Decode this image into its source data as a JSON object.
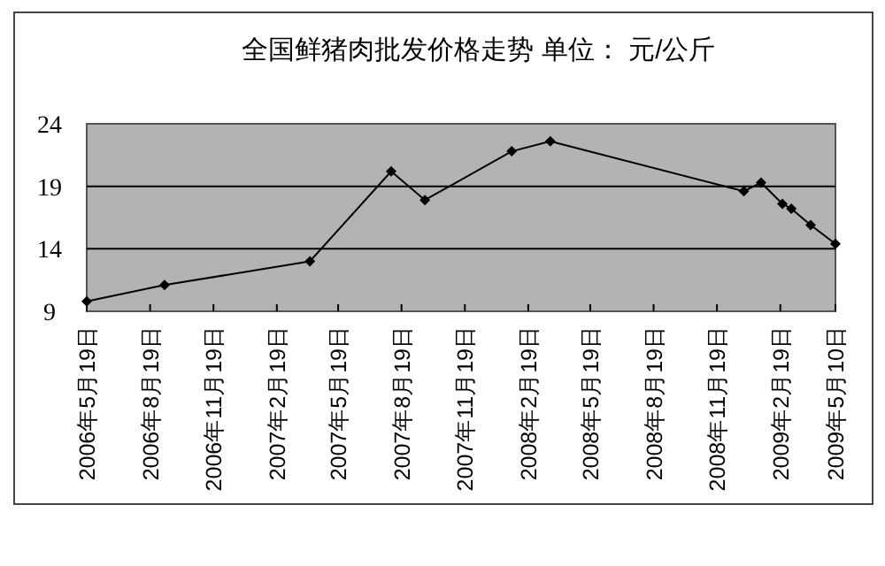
{
  "chart_data": {
    "type": "line",
    "title": "全国鲜猪肉批发价格走势 单位：  元/公斤",
    "x": [
      "2006-05-19",
      "2006-09-09",
      "2007-04-08",
      "2007-08-04",
      "2007-09-22",
      "2008-01-26",
      "2008-03-22",
      "2008-12-28",
      "2009-01-22",
      "2009-02-22",
      "2009-03-07",
      "2009-04-04",
      "2009-05-10"
    ],
    "series": [
      {
        "color": "#000000",
        "values": [
          9.8,
          11.1,
          13.0,
          20.2,
          17.9,
          21.8,
          22.6,
          18.6,
          19.3,
          17.6,
          17.2,
          15.9,
          14.4
        ]
      }
    ],
    "xlim": [
      "2006-05-19",
      "2009-05-10"
    ],
    "xticks": [
      {
        "value": "2006-05-19",
        "label": "2006年5月19日"
      },
      {
        "value": "2006-08-19",
        "label": "2006年8月19日"
      },
      {
        "value": "2006-11-19",
        "label": "2006年11月19日"
      },
      {
        "value": "2007-02-19",
        "label": "2007年2月19日"
      },
      {
        "value": "2007-05-19",
        "label": "2007年5月19日"
      },
      {
        "value": "2007-08-19",
        "label": "2007年8月19日"
      },
      {
        "value": "2007-11-19",
        "label": "2007年11月19日"
      },
      {
        "value": "2008-02-19",
        "label": "2008年2月19日"
      },
      {
        "value": "2008-05-19",
        "label": "2008年5月19日"
      },
      {
        "value": "2008-08-19",
        "label": "2008年8月19日"
      },
      {
        "value": "2008-11-19",
        "label": "2008年11月19日"
      },
      {
        "value": "2009-02-19",
        "label": "2009年2月19日"
      },
      {
        "value": "2009-05-10",
        "label": "2009年5月10日"
      }
    ],
    "ylim": [
      9,
      24
    ],
    "yticks": [
      9,
      14,
      19,
      24
    ],
    "grid": "y",
    "marker": "diamond",
    "line_style": "solid"
  }
}
